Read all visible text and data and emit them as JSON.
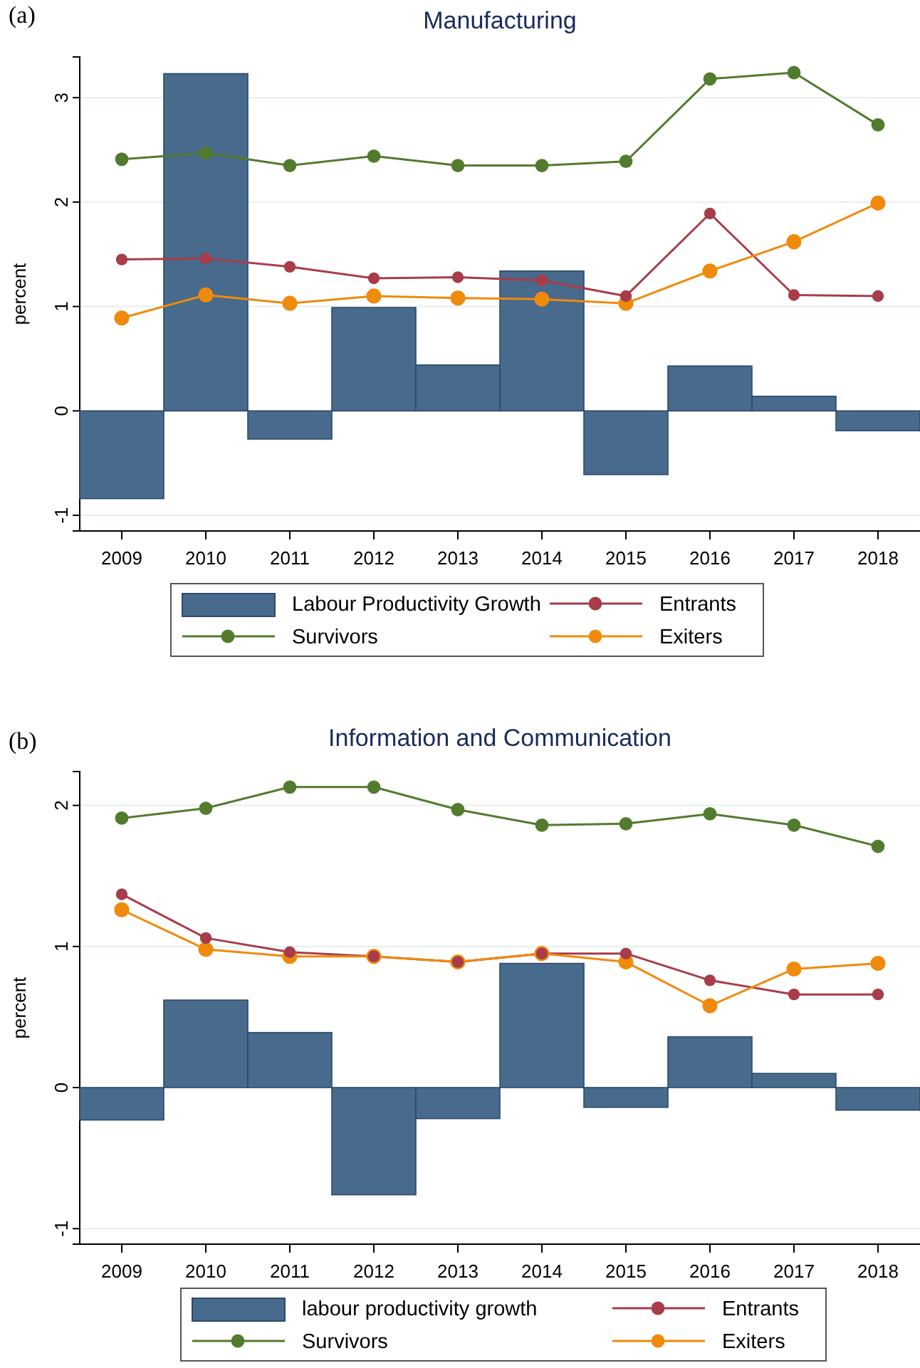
{
  "chart_data": [
    {
      "type": "bar",
      "title": "Manufacturing",
      "ylabel": "percent",
      "annotations": [
        "(a)"
      ],
      "categories": [
        "2009",
        "2010",
        "2011",
        "2012",
        "2013",
        "2014",
        "2015",
        "2016",
        "2017",
        "2018"
      ],
      "ylim": [
        -1.15,
        3.39
      ],
      "yticks": [
        -1,
        0,
        1,
        2,
        3
      ],
      "grid": "y",
      "legend": "bottom",
      "marker": "circle",
      "series": [
        {
          "name": "Labour Productivity Growth",
          "color": "#486a8c",
          "values": [
            -0.84,
            3.23,
            -0.27,
            0.99,
            0.44,
            1.34,
            -0.61,
            0.43,
            0.14,
            -0.19
          ]
        },
        {
          "name": "Entrants",
          "type": "line",
          "color": "#a83c4a",
          "values": [
            1.45,
            1.46,
            1.38,
            1.27,
            1.28,
            1.25,
            1.1,
            1.89,
            1.11,
            1.1
          ]
        },
        {
          "name": "Survivors",
          "type": "line",
          "color": "#537b2e",
          "values": [
            2.41,
            2.47,
            2.35,
            2.44,
            2.35,
            2.35,
            2.39,
            3.18,
            3.24,
            2.74
          ]
        },
        {
          "name": "Exiters",
          "type": "line",
          "color": "#f08a0c",
          "values": [
            0.89,
            1.11,
            1.03,
            1.1,
            1.08,
            1.07,
            1.03,
            1.34,
            1.62,
            1.99
          ]
        }
      ]
    },
    {
      "type": "bar",
      "title": "Information and Communication",
      "ylabel": "percent",
      "annotations": [
        "(b)"
      ],
      "categories": [
        "2009",
        "2010",
        "2011",
        "2012",
        "2013",
        "2014",
        "2015",
        "2016",
        "2017",
        "2018"
      ],
      "ylim": [
        -1.11,
        2.24
      ],
      "yticks": [
        -1,
        0,
        1,
        2
      ],
      "grid": "y",
      "legend": "bottom",
      "marker": "circle",
      "series": [
        {
          "name": "labour productivity growth",
          "color": "#486a8c",
          "values": [
            -0.23,
            0.62,
            0.39,
            -0.76,
            -0.22,
            0.88,
            -0.14,
            0.36,
            0.1,
            -0.16
          ]
        },
        {
          "name": "Entrants",
          "type": "line",
          "color": "#a83c4a",
          "values": [
            1.37,
            1.06,
            0.96,
            0.93,
            0.89,
            0.95,
            0.95,
            0.76,
            0.66,
            0.66
          ]
        },
        {
          "name": "Survivors",
          "type": "line",
          "color": "#537b2e",
          "values": [
            1.91,
            1.98,
            2.13,
            2.13,
            1.97,
            1.86,
            1.87,
            1.94,
            1.86,
            1.71
          ]
        },
        {
          "name": "Exiters",
          "type": "line",
          "color": "#f08a0c",
          "values": [
            1.26,
            0.98,
            0.93,
            0.93,
            0.89,
            0.95,
            0.89,
            0.58,
            0.84,
            0.88
          ]
        }
      ]
    }
  ]
}
